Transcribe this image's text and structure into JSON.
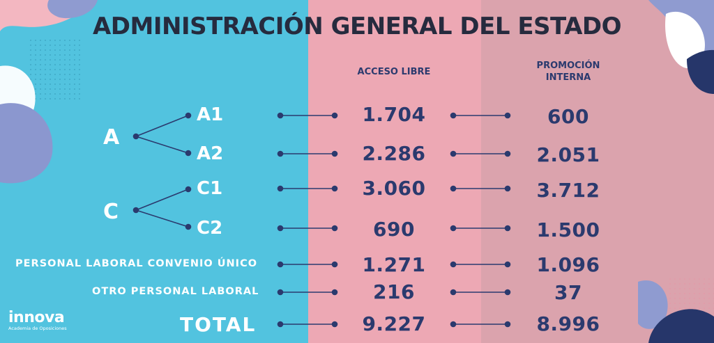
{
  "title": "ADMINISTRACIÓN GENERAL DEL ESTADO",
  "columns": {
    "acceso_libre": "ACCESO LIBRE",
    "promocion_line1": "PROMOCIÓN",
    "promocion_line2": "INTERNA"
  },
  "groups": {
    "a": "A",
    "c": "C"
  },
  "rows": [
    {
      "label": "A1",
      "acceso_libre": "1.704",
      "promocion_interna": "600"
    },
    {
      "label": "A2",
      "acceso_libre": "2.286",
      "promocion_interna": "2.051"
    },
    {
      "label": "C1",
      "acceso_libre": "3.060",
      "promocion_interna": "3.712"
    },
    {
      "label": "C2",
      "acceso_libre": "690",
      "promocion_interna": "1.500"
    },
    {
      "label": "PERSONAL LABORAL CONVENIO ÚNICO",
      "acceso_libre": "1.271",
      "promocion_interna": "1.096"
    },
    {
      "label": "OTRO PERSONAL LABORAL",
      "acceso_libre": "216",
      "promocion_interna": "37"
    },
    {
      "label": "TOTAL",
      "acceso_libre": "9.227",
      "promocion_interna": "8.996"
    }
  ],
  "logo": {
    "name": "innova",
    "tagline": "Academia de Oposiciones"
  },
  "colors": {
    "left_panel": "#52c3df",
    "middle_panel": "#eda8b4",
    "right_panel": "#dba3ad",
    "navy": "#2b3a6e"
  }
}
